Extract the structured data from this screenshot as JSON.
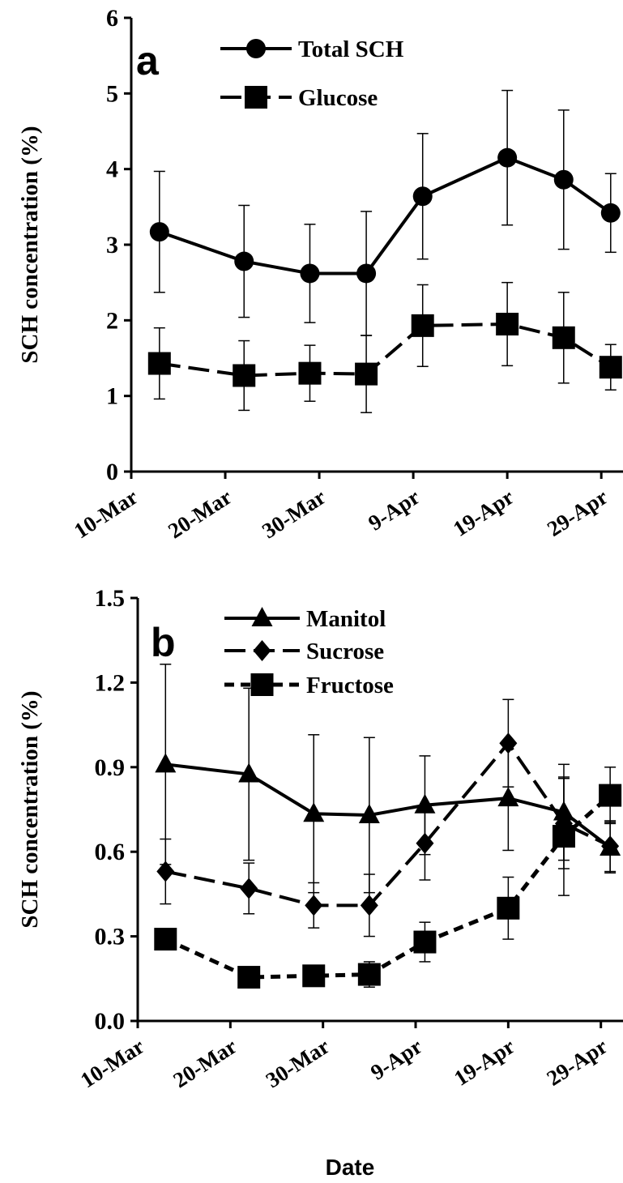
{
  "chart_data": [
    {
      "type": "line",
      "panel": "a",
      "y_label": "SCH concentration (%)",
      "x": [
        "13-Mar",
        "22-Mar",
        "29-Mar",
        "4-Apr",
        "10-Apr",
        "19-Apr",
        "25-Apr",
        "30-Apr"
      ],
      "xlim": [
        "10-Mar",
        "2-May"
      ],
      "xticks": [
        "10-Mar",
        "20-Mar",
        "30-Mar",
        "9-Apr",
        "19-Apr",
        "29-Apr"
      ],
      "ylim": [
        0,
        6
      ],
      "yticks": [
        0,
        1,
        2,
        3,
        4,
        5,
        6
      ],
      "series": [
        {
          "name": "Total SCH",
          "color": "#000000",
          "marker": "circle",
          "dash": "solid",
          "values": [
            3.17,
            2.78,
            2.62,
            2.62,
            3.64,
            4.15,
            3.86,
            3.42
          ],
          "errors": [
            0.8,
            0.74,
            0.65,
            0.82,
            0.83,
            0.89,
            0.92,
            0.52
          ]
        },
        {
          "name": "Glucose",
          "color": "#000000",
          "marker": "square",
          "dash": "long",
          "values": [
            1.43,
            1.27,
            1.3,
            1.29,
            1.93,
            1.95,
            1.77,
            1.38
          ],
          "errors": [
            0.47,
            0.46,
            0.37,
            0.51,
            0.54,
            0.55,
            0.6,
            0.3
          ]
        }
      ]
    },
    {
      "type": "line",
      "panel": "b",
      "y_label": "SCH concentration (%)",
      "x_label": "Date",
      "x": [
        "13-Mar",
        "22-Mar",
        "29-Mar",
        "4-Apr",
        "10-Apr",
        "19-Apr",
        "25-Apr",
        "30-Apr"
      ],
      "xlim": [
        "10-Mar",
        "2-May"
      ],
      "xticks": [
        "10-Mar",
        "20-Mar",
        "30-Mar",
        "9-Apr",
        "19-Apr",
        "29-Apr"
      ],
      "ylim": [
        0,
        1.5
      ],
      "yticks": [
        {
          "value": 0,
          "label": "0.0"
        },
        0.3,
        0.6,
        0.9,
        1.2,
        1.5
      ],
      "series": [
        {
          "name": "Manitol",
          "color": "#000000",
          "marker": "triangle",
          "dash": "solid",
          "values": [
            0.91,
            0.875,
            0.735,
            0.73,
            0.765,
            0.79,
            0.74,
            0.615
          ],
          "errors": [
            0.355,
            0.305,
            0.28,
            0.275,
            0.175,
            0.185,
            0.17,
            0.09
          ]
        },
        {
          "name": "Sucrose",
          "color": "#000000",
          "marker": "diamond",
          "dash": "long",
          "values": [
            0.53,
            0.47,
            0.41,
            0.41,
            0.63,
            0.985,
            0.7,
            0.62
          ],
          "errors": [
            0.115,
            0.09,
            0.08,
            0.11,
            0.13,
            0.155,
            0.16,
            0.09
          ]
        },
        {
          "name": "Fructose",
          "color": "#000000",
          "marker": "square",
          "dash": "short",
          "values": [
            0.29,
            0.155,
            0.16,
            0.165,
            0.28,
            0.4,
            0.655,
            0.8
          ],
          "errors": [
            0.02,
            0.015,
            0.02,
            0.045,
            0.07,
            0.11,
            0.21,
            0.1
          ]
        }
      ]
    }
  ]
}
